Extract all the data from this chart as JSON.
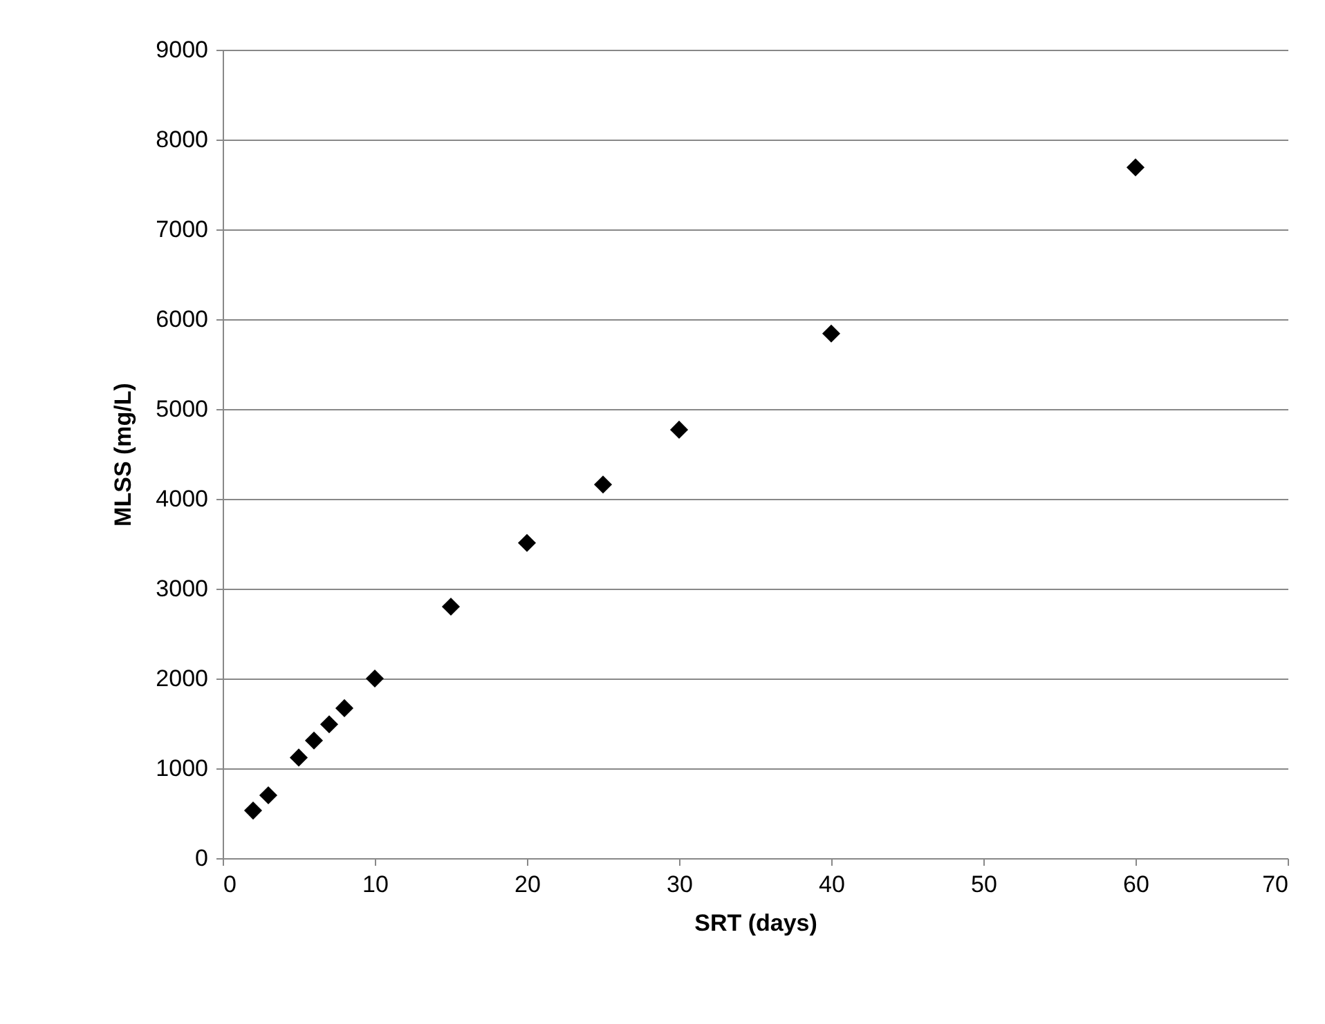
{
  "chart_data": {
    "type": "scatter",
    "xlabel": "SRT (days)",
    "ylabel": "MLSS (mg/L)",
    "x": [
      2,
      3,
      5,
      6,
      7,
      8,
      10,
      15,
      20,
      25,
      30,
      40,
      60
    ],
    "series": [
      {
        "color": "#000000",
        "values": [
          530,
          700,
          1120,
          1310,
          1490,
          1670,
          2000,
          2800,
          3510,
          4160,
          4770,
          5840,
          7690
        ]
      }
    ],
    "xlim": [
      0,
      70
    ],
    "xticks": [
      0,
      10,
      20,
      30,
      40,
      50,
      60,
      70
    ],
    "ylim": [
      0,
      9000
    ],
    "yticks": [
      0,
      1000,
      2000,
      3000,
      4000,
      5000,
      6000,
      7000,
      8000,
      9000
    ],
    "grid": "y",
    "marker": "diamond",
    "legend": false
  }
}
